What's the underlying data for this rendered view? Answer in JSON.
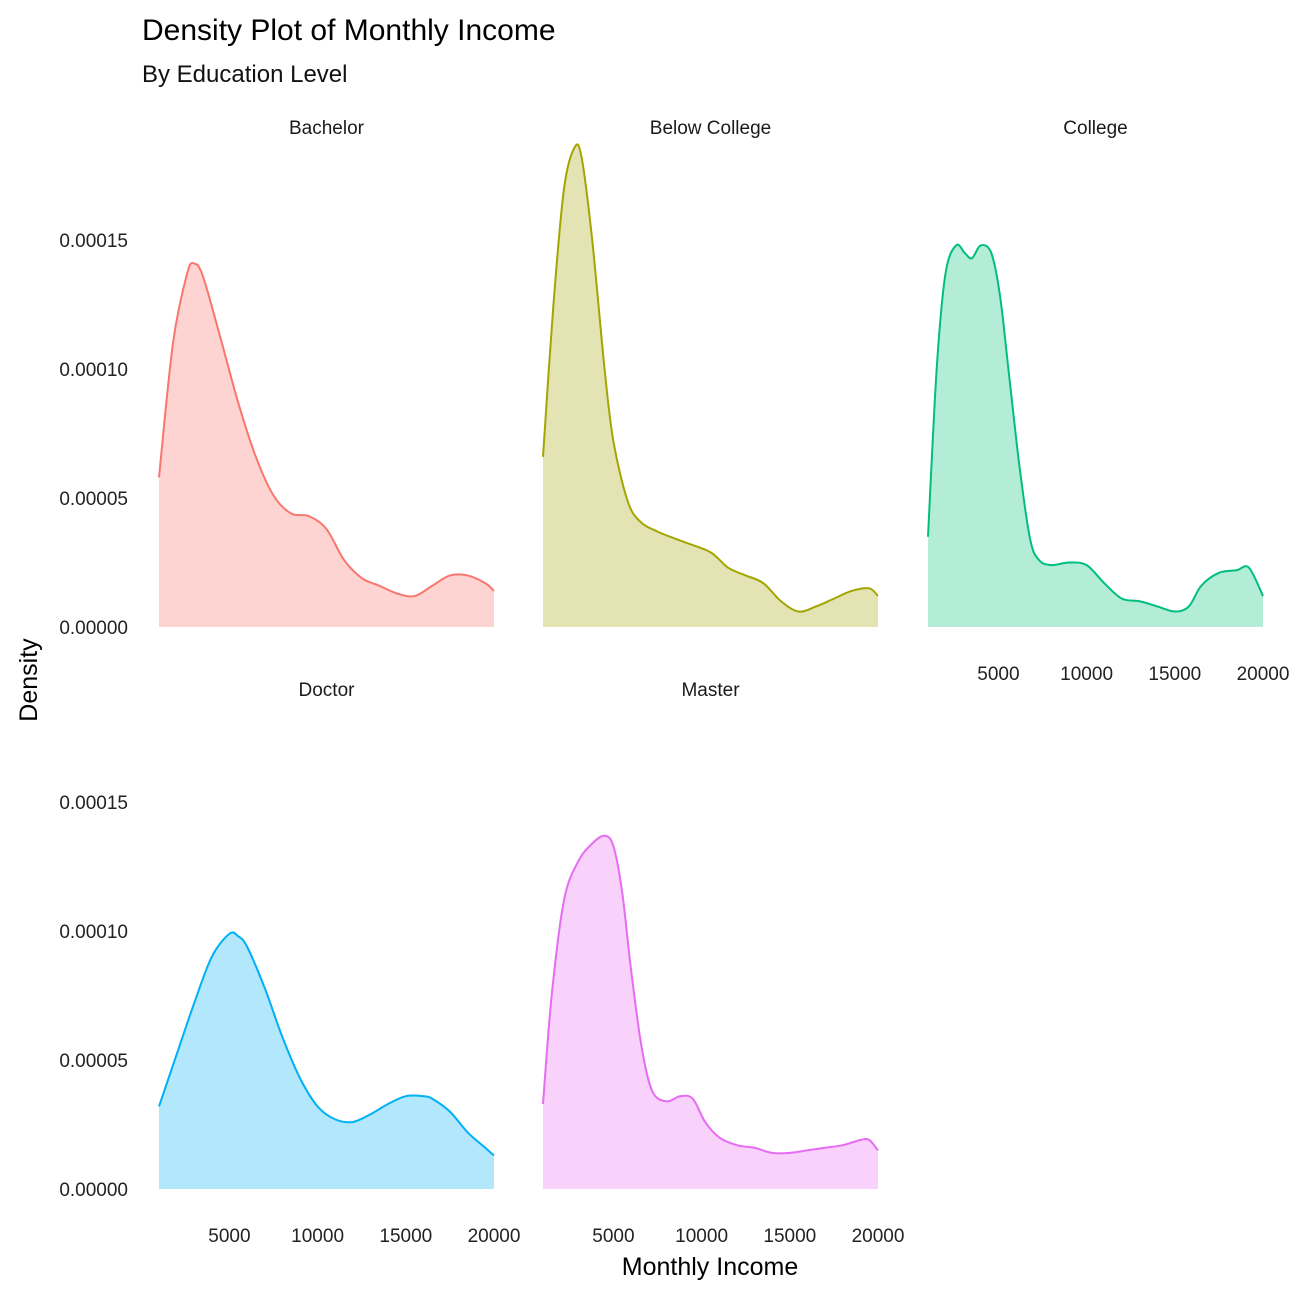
{
  "chart_data": {
    "type": "area",
    "title": "Density Plot of Monthly Income",
    "subtitle": "By Education Level",
    "xlabel": "Monthly Income",
    "ylabel": "Density",
    "xlim": [
      1009,
      19999
    ],
    "ylim": [
      0,
      0.000185
    ],
    "x_ticks": [
      5000,
      10000,
      15000,
      20000
    ],
    "x_tick_labels": [
      "5000",
      "10000",
      "15000",
      "20000"
    ],
    "y_ticks": [
      0,
      5e-05,
      0.0001,
      0.00015
    ],
    "y_tick_labels": [
      "0.00000",
      "0.00005",
      "0.00010",
      "0.00015"
    ],
    "grid": false,
    "legend": "none",
    "facets": [
      {
        "name": "Bachelor",
        "line_color": "#F8766D",
        "fill_color": "#FDD4D1",
        "x": [
          1009,
          1800,
          2600,
          3000,
          3500,
          4500,
          5500,
          6500,
          7500,
          8500,
          9500,
          10500,
          11500,
          12500,
          13500,
          14500,
          15500,
          16500,
          17500,
          18500,
          19500,
          19999
        ],
        "y": [
          5.8e-05,
          0.00011,
          0.000137,
          0.000141,
          0.000136,
          0.000112,
          8.7e-05,
          6.6e-05,
          5.1e-05,
          4.4e-05,
          4.3e-05,
          3.8e-05,
          2.6e-05,
          1.9e-05,
          1.6e-05,
          1.3e-05,
          1.2e-05,
          1.6e-05,
          2e-05,
          2e-05,
          1.7e-05,
          1.4e-05
        ]
      },
      {
        "name": "Below College",
        "line_color": "#A3A500",
        "fill_color": "#E4E3B3",
        "x": [
          1009,
          1600,
          2200,
          2800,
          3200,
          3800,
          4500,
          5000,
          5800,
          6500,
          7500,
          9000,
          10500,
          11500,
          12500,
          13500,
          14500,
          15500,
          16500,
          17500,
          18500,
          19500,
          19999
        ],
        "y": [
          6.6e-05,
          0.000125,
          0.00017,
          0.000186,
          0.000182,
          0.00015,
          0.0001,
          7.2e-05,
          4.9e-05,
          4.1e-05,
          3.7e-05,
          3.3e-05,
          2.9e-05,
          2.3e-05,
          2e-05,
          1.7e-05,
          1e-05,
          6e-06,
          8e-06,
          1.1e-05,
          1.4e-05,
          1.5e-05,
          1.2e-05
        ]
      },
      {
        "name": "College",
        "line_color": "#00BF7D",
        "fill_color": "#B3EDD8",
        "x": [
          1009,
          1500,
          2000,
          2600,
          3100,
          3500,
          4000,
          4600,
          5100,
          5600,
          6200,
          6800,
          7300,
          8000,
          9000,
          10000,
          11000,
          12000,
          13000,
          14000,
          15000,
          15800,
          16500,
          17500,
          18500,
          19200,
          19999
        ],
        "y": [
          3.5e-05,
          0.0001,
          0.000137,
          0.000148,
          0.000145,
          0.000143,
          0.000148,
          0.000145,
          0.000128,
          9.8e-05,
          6.2e-05,
          3.4e-05,
          2.6e-05,
          2.4e-05,
          2.5e-05,
          2.4e-05,
          1.7e-05,
          1.1e-05,
          1e-05,
          8e-06,
          6e-06,
          8e-06,
          1.6e-05,
          2.1e-05,
          2.2e-05,
          2.3e-05,
          1.2e-05
        ]
      },
      {
        "name": "Doctor",
        "line_color": "#00B0F6",
        "fill_color": "#B3E7FC",
        "x": [
          1009,
          2000,
          3000,
          4000,
          5000,
          5500,
          6000,
          7000,
          8000,
          9000,
          10000,
          11000,
          12000,
          13000,
          14000,
          15000,
          16000,
          16500,
          17500,
          18500,
          19500,
          19999
        ],
        "y": [
          3.2e-05,
          5.2e-05,
          7.2e-05,
          9e-05,
          9.9e-05,
          9.8e-05,
          9.4e-05,
          7.8e-05,
          5.9e-05,
          4.3e-05,
          3.2e-05,
          2.7e-05,
          2.6e-05,
          2.9e-05,
          3.3e-05,
          3.6e-05,
          3.6e-05,
          3.5e-05,
          3e-05,
          2.2e-05,
          1.6e-05,
          1.3e-05
        ]
      },
      {
        "name": "Master",
        "line_color": "#E76BF3",
        "fill_color": "#F8D2FB",
        "x": [
          1009,
          1500,
          2200,
          3000,
          3800,
          4500,
          5000,
          5500,
          6000,
          6600,
          7200,
          8000,
          8800,
          9500,
          10200,
          11000,
          12000,
          13000,
          14000,
          15000,
          16000,
          17000,
          18000,
          19000,
          19500,
          19999
        ],
        "y": [
          3.3e-05,
          7.5e-05,
          0.000112,
          0.000127,
          0.000134,
          0.000137,
          0.000133,
          0.000115,
          8.5e-05,
          5.5e-05,
          3.8e-05,
          3.4e-05,
          3.6e-05,
          3.5e-05,
          2.6e-05,
          2e-05,
          1.7e-05,
          1.6e-05,
          1.4e-05,
          1.4e-05,
          1.5e-05,
          1.6e-05,
          1.7e-05,
          1.9e-05,
          1.9e-05,
          1.5e-05
        ]
      }
    ]
  }
}
